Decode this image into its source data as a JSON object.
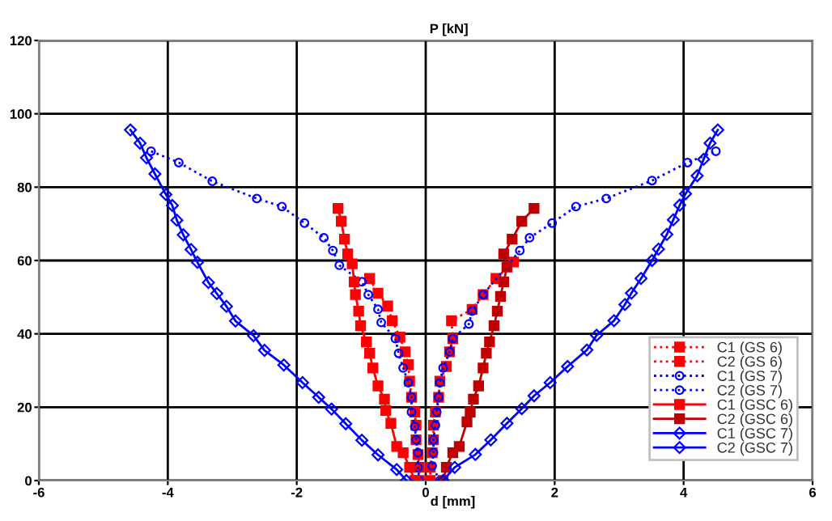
{
  "chart_data": {
    "type": "line",
    "xlabel": "d [mm]",
    "ylabel": "P [kN]",
    "xlim": [
      -6,
      6
    ],
    "ylim": [
      0,
      120
    ],
    "xticks": [
      -6,
      -4,
      -2,
      0,
      2,
      4,
      6
    ],
    "yticks": [
      0,
      20,
      40,
      60,
      80,
      100,
      120
    ],
    "grid": true,
    "legend": "lower right",
    "series": [
      {
        "name": "C1 (GS 6)",
        "color": "#ff0000",
        "marker": "square",
        "line_style": "dotted",
        "x": [
          -0.87,
          -0.74,
          -0.59,
          -0.52,
          -0.4,
          -0.32,
          -0.27,
          -0.25,
          -0.22,
          -0.17,
          -0.15,
          -0.15,
          -0.12,
          -0.1,
          -0.1
        ],
        "values": [
          55.1,
          51.1,
          47.6,
          43.6,
          39.1,
          35.1,
          31.6,
          27.1,
          22.7,
          18.7,
          15.1,
          11.1,
          7.1,
          3.6,
          0
        ]
      },
      {
        "name": "C2 (GS 6)",
        "color": "#ff0000",
        "marker": "square",
        "line_style": "dotted",
        "x": [
          0.07,
          0.07,
          0.1,
          0.12,
          0.12,
          0.15,
          0.2,
          0.22,
          0.32,
          0.37,
          0.42,
          0.4,
          0.72,
          0.89,
          1.09,
          1.36
        ],
        "values": [
          0,
          3.6,
          7.6,
          11.1,
          15.1,
          18.7,
          22.7,
          27.1,
          31.1,
          35.1,
          38.7,
          43.6,
          46.7,
          50.7,
          55.1,
          59.6
        ]
      },
      {
        "name": "C1 (GS 7)",
        "color": "#0000ff",
        "marker": "circle",
        "line_style": "dotted",
        "x": [
          -4.26,
          -3.83,
          -3.31,
          -2.62,
          -2.23,
          -1.88,
          -1.58,
          -1.44,
          -1.34,
          -0.99,
          -0.89,
          -0.74,
          -0.69,
          -0.47,
          -0.42,
          -0.35,
          -0.27,
          -0.22,
          -0.22,
          -0.17,
          -0.15,
          -0.12,
          -0.12,
          -0.1
        ],
        "values": [
          89.8,
          86.7,
          81.6,
          76.9,
          74.7,
          70.2,
          66.2,
          62.7,
          58.7,
          54.2,
          50.7,
          46.7,
          43.1,
          38.7,
          34.7,
          30.7,
          26.7,
          22.7,
          18.7,
          14.7,
          11.1,
          7.6,
          3.6,
          0
        ]
      },
      {
        "name": "C2 (GS 7)",
        "color": "#0000ff",
        "marker": "circle",
        "line_style": "dotted",
        "x": [
          0.22,
          0.1,
          0.12,
          0.12,
          0.15,
          0.17,
          0.2,
          0.22,
          0.27,
          0.37,
          0.42,
          0.67,
          0.72,
          0.89,
          1.46,
          1.61,
          1.96,
          2.33,
          2.8,
          3.51,
          4.06,
          4.5
        ],
        "values": [
          0,
          4,
          7.6,
          11.1,
          15.1,
          18.7,
          22.7,
          26.7,
          30.7,
          35.1,
          38.7,
          42.7,
          46.2,
          50.7,
          62.7,
          66.2,
          70.2,
          74.7,
          76.9,
          81.8,
          86.7,
          89.8
        ]
      },
      {
        "name": "C1 (GSC 6)",
        "color": "#ff0000",
        "marker": "square",
        "line_style": "solid",
        "x": [
          -1.36,
          -1.31,
          -1.26,
          -1.21,
          -1.14,
          -1.11,
          -1.09,
          -1.04,
          -1.01,
          -0.92,
          -0.87,
          -0.82,
          -0.74,
          -0.64,
          -0.62,
          -0.54,
          -0.45,
          -0.35,
          -0.25,
          -0.17
        ],
        "values": [
          74.2,
          70.7,
          65.8,
          61.8,
          59.1,
          54.2,
          50.7,
          46.2,
          42.2,
          37.8,
          34.7,
          30.7,
          25.8,
          22.2,
          19.1,
          15.6,
          9.3,
          7.6,
          3.6,
          0
        ]
      },
      {
        "name": "C2 (GSC 6)",
        "color": "#c00000",
        "marker": "square",
        "line_style": "solid",
        "x": [
          0.27,
          0.32,
          0.42,
          0.52,
          0.64,
          0.69,
          0.74,
          0.82,
          0.89,
          0.94,
          0.99,
          1.06,
          1.11,
          1.16,
          1.21,
          1.26,
          1.21,
          1.34,
          1.49,
          1.68
        ],
        "values": [
          0,
          3.6,
          7.6,
          9.3,
          16,
          18.7,
          22.2,
          25.8,
          30.7,
          34.7,
          37.8,
          42.2,
          46.2,
          50.2,
          54.2,
          58.2,
          61.8,
          65.8,
          70.7,
          74.2
        ]
      },
      {
        "name": "C1 (GSC 7)",
        "color": "#0000ff",
        "marker": "diamond",
        "line_style": "solid",
        "x": [
          -4.58,
          -4.43,
          -4.33,
          -4.2,
          -4.03,
          -3.93,
          -3.86,
          -3.76,
          -3.64,
          -3.54,
          -3.37,
          -3.24,
          -3.09,
          -2.95,
          -2.67,
          -2.5,
          -2.2,
          -1.91,
          -1.66,
          -1.46,
          -1.24,
          -0.99,
          -0.74,
          -0.45,
          -0.3
        ],
        "values": [
          95.6,
          92,
          88,
          83.6,
          78,
          75,
          71,
          67,
          63,
          59.5,
          54,
          51,
          47.5,
          43.5,
          39.5,
          35.5,
          31.5,
          26.7,
          22.7,
          19.5,
          15.5,
          11,
          7,
          3,
          0
        ]
      },
      {
        "name": "C2 (GSC 7)",
        "color": "#0000ff",
        "marker": "diamond",
        "line_style": "solid",
        "x": [
          0.27,
          0.45,
          0.77,
          1.01,
          1.26,
          1.49,
          1.68,
          1.93,
          2.2,
          2.5,
          2.65,
          2.92,
          3.09,
          3.19,
          3.34,
          3.51,
          3.61,
          3.74,
          3.84,
          3.94,
          4.03,
          4.21,
          4.31,
          4.41,
          4.53
        ],
        "values": [
          0,
          3.6,
          7.1,
          11.1,
          15.6,
          19.6,
          23.1,
          26.7,
          31.1,
          35.6,
          39.6,
          43.6,
          48,
          51.1,
          55.1,
          60,
          63.1,
          67.1,
          71.1,
          75.1,
          78.2,
          83.1,
          87.6,
          92,
          95.6
        ]
      }
    ]
  }
}
